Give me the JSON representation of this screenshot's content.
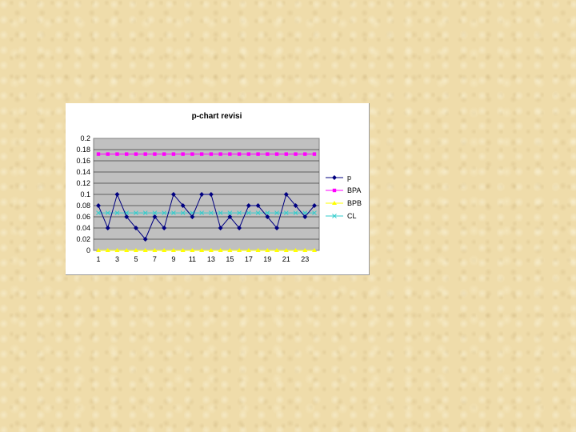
{
  "chart_data": {
    "type": "line",
    "title": "p-chart revisi",
    "xlabel": "",
    "ylabel": "",
    "x": [
      1,
      2,
      3,
      4,
      5,
      6,
      7,
      8,
      9,
      10,
      11,
      12,
      13,
      14,
      15,
      16,
      17,
      18,
      19,
      20,
      21,
      22,
      23,
      24
    ],
    "x_tick_labels": [
      "1",
      "3",
      "5",
      "7",
      "9",
      "11",
      "13",
      "15",
      "17",
      "19",
      "21",
      "23"
    ],
    "y_tick_labels": [
      "0",
      "0.02",
      "0.04",
      "0.06",
      "0.08",
      "0.1",
      "0.12",
      "0.14",
      "0.16",
      "0.18",
      "0.2"
    ],
    "ylim": [
      0,
      0.2
    ],
    "grid": true,
    "plot_background": "#c0c0c0",
    "legend_position": "right",
    "series": [
      {
        "name": "p",
        "color": "#000080",
        "marker": "diamond",
        "values": [
          0.08,
          0.04,
          0.1,
          0.06,
          0.04,
          0.02,
          0.06,
          0.04,
          0.1,
          0.08,
          0.06,
          0.1,
          0.1,
          0.04,
          0.06,
          0.04,
          0.08,
          0.08,
          0.06,
          0.04,
          0.1,
          0.08,
          0.06,
          0.08
        ]
      },
      {
        "name": "BPA",
        "color": "#ff00ff",
        "marker": "square",
        "values": [
          0.172,
          0.172,
          0.172,
          0.172,
          0.172,
          0.172,
          0.172,
          0.172,
          0.172,
          0.172,
          0.172,
          0.172,
          0.172,
          0.172,
          0.172,
          0.172,
          0.172,
          0.172,
          0.172,
          0.172,
          0.172,
          0.172,
          0.172,
          0.172
        ]
      },
      {
        "name": "BPB",
        "color": "#ffff00",
        "marker": "triangle",
        "values": [
          0,
          0,
          0,
          0,
          0,
          0,
          0,
          0,
          0,
          0,
          0,
          0,
          0,
          0,
          0,
          0,
          0,
          0,
          0,
          0,
          0,
          0,
          0,
          0
        ]
      },
      {
        "name": "CL",
        "color": "#33cccc",
        "marker": "x",
        "values": [
          0.067,
          0.067,
          0.067,
          0.067,
          0.067,
          0.067,
          0.067,
          0.067,
          0.067,
          0.067,
          0.067,
          0.067,
          0.067,
          0.067,
          0.067,
          0.067,
          0.067,
          0.067,
          0.067,
          0.067,
          0.067,
          0.067,
          0.067,
          0.067
        ]
      }
    ]
  }
}
